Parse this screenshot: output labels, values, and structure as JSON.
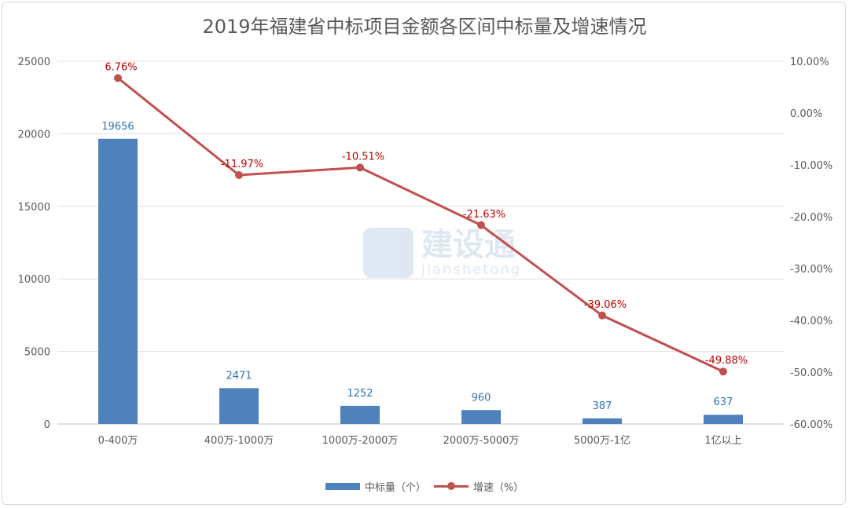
{
  "chart_data": {
    "type": "bar+line",
    "title": "2019年福建省中标项目金额各区间中标量及增速情况",
    "categories": [
      "0-400万",
      "400万-1000万",
      "1000万-2000万",
      "2000万-5000万",
      "5000万-1亿",
      "1亿以上"
    ],
    "series": [
      {
        "name": "中标量（个）",
        "type": "bar",
        "axis": "left",
        "color": "#4f81bd",
        "values": [
          19656,
          2471,
          1252,
          960,
          387,
          637
        ],
        "labels": [
          "19656",
          "2471",
          "1252",
          "960",
          "387",
          "637"
        ]
      },
      {
        "name": "增速（%）",
        "type": "line",
        "axis": "right",
        "color": "#c0504d",
        "values": [
          6.76,
          -11.97,
          -10.51,
          -21.63,
          -39.06,
          -49.88
        ],
        "labels": [
          "6.76%",
          "-11.97%",
          "-10.51%",
          "-21.63%",
          "-39.06%",
          "-49.88%"
        ]
      }
    ],
    "ylim_left": [
      0,
      25000
    ],
    "yticks_left": [
      "0",
      "5000",
      "10000",
      "15000",
      "20000",
      "25000"
    ],
    "ylim_right": [
      -60,
      10
    ],
    "yticks_right": [
      "-60.00%",
      "-50.00%",
      "-40.00%",
      "-30.00%",
      "-20.00%",
      "-10.00%",
      "0.00%",
      "10.00%"
    ],
    "grid": true,
    "legend": "bottom",
    "bar_label_color": "#2e75b6",
    "line_label_color": "#c00000"
  },
  "watermark": {
    "text": "建设通",
    "subtext": "jianshetong"
  }
}
